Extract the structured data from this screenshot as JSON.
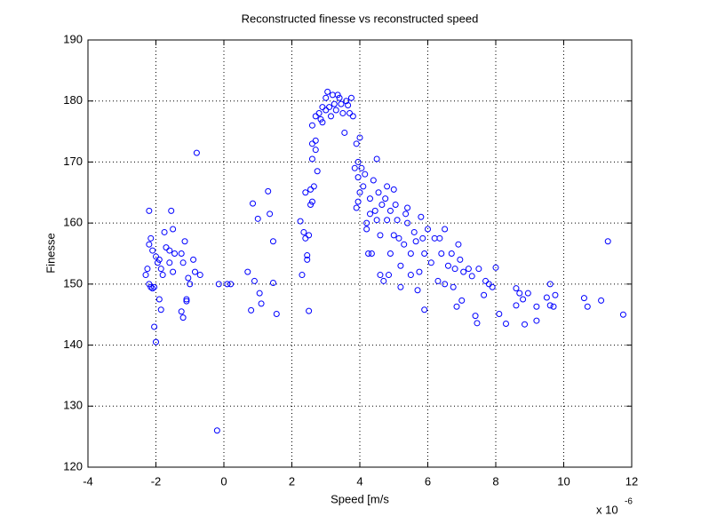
{
  "chart_data": {
    "type": "scatter",
    "title": "Reconstructed finesse vs reconstructed speed",
    "xlabel": "Speed [m/s",
    "ylabel": "Finesse",
    "x_multiplier_text": "x 10",
    "x_multiplier_exponent": "-6",
    "color": "#0000ff",
    "grid": true,
    "xlim": [
      -4,
      12
    ],
    "xticks": [
      -4,
      -2,
      0,
      2,
      4,
      6,
      8,
      10,
      12
    ],
    "ylim": [
      120,
      190
    ],
    "yticks": [
      120,
      130,
      140,
      150,
      160,
      170,
      180,
      190
    ],
    "x": [
      -2.2,
      -2.15,
      -2.2,
      -2.1,
      -2.25,
      -2.3,
      -2.2,
      -2.15,
      -2.1,
      -2.05,
      -2.0,
      -1.95,
      -1.9,
      -1.85,
      -2.05,
      -2.0,
      -1.9,
      -1.85,
      -1.8,
      -1.75,
      -1.7,
      -1.6,
      -1.55,
      -1.5,
      -1.5,
      -1.6,
      -1.45,
      -1.25,
      -1.2,
      -1.25,
      -1.2,
      -1.15,
      -1.1,
      -1.1,
      -1.05,
      -1.0,
      -0.9,
      -0.85,
      -0.7,
      -0.8,
      -0.2,
      -0.15,
      0.1,
      0.2,
      0.7,
      0.8,
      0.85,
      0.9,
      1.0,
      1.05,
      1.1,
      1.3,
      1.35,
      1.45,
      1.45,
      1.55,
      2.25,
      2.3,
      2.35,
      2.4,
      2.4,
      2.45,
      2.45,
      2.5,
      2.5,
      2.55,
      2.55,
      2.6,
      2.6,
      2.65,
      2.6,
      2.7,
      2.7,
      2.75,
      2.6,
      2.7,
      2.8,
      2.85,
      2.9,
      2.9,
      3.0,
      3.0,
      3.05,
      3.1,
      3.15,
      3.2,
      3.25,
      3.3,
      3.35,
      3.4,
      3.45,
      3.5,
      3.55,
      3.6,
      3.65,
      3.7,
      3.75,
      3.8,
      3.85,
      3.9,
      3.95,
      4.0,
      3.95,
      4.0,
      3.95,
      3.9,
      4.05,
      4.1,
      4.15,
      4.2,
      4.25,
      4.2,
      4.3,
      4.3,
      4.35,
      4.4,
      4.45,
      4.5,
      4.55,
      4.5,
      4.6,
      4.6,
      4.65,
      4.7,
      4.75,
      4.8,
      4.8,
      4.85,
      4.9,
      4.9,
      5.0,
      5.0,
      5.05,
      5.1,
      5.15,
      5.2,
      5.2,
      5.3,
      5.35,
      5.4,
      5.4,
      5.5,
      5.5,
      5.6,
      5.65,
      5.7,
      5.75,
      5.8,
      5.85,
      5.9,
      5.9,
      6.0,
      6.1,
      6.2,
      6.3,
      6.35,
      6.4,
      6.5,
      6.5,
      6.6,
      6.7,
      6.75,
      6.8,
      6.85,
      6.9,
      6.95,
      7.0,
      7.05,
      7.2,
      7.3,
      7.4,
      7.45,
      7.5,
      7.65,
      7.7,
      7.8,
      7.9,
      8.0,
      8.1,
      8.3,
      8.6,
      8.6,
      8.7,
      8.8,
      8.85,
      8.95,
      9.2,
      9.2,
      9.5,
      9.6,
      9.6,
      9.7,
      9.75,
      10.6,
      10.7,
      11.1,
      11.3,
      11.75
    ],
    "values": [
      162,
      157.5,
      156.5,
      155.5,
      152.5,
      151.5,
      150,
      149.5,
      149.3,
      149.5,
      154.5,
      153.5,
      154,
      152.5,
      143,
      140.5,
      147.5,
      145.8,
      151.5,
      158.5,
      156,
      155.5,
      162,
      159,
      152,
      153.5,
      155,
      155,
      153.5,
      145.5,
      144.5,
      157,
      147.5,
      147.2,
      151,
      150,
      154,
      152,
      151.5,
      171.5,
      126,
      150,
      150,
      150,
      152,
      145.7,
      163.2,
      150.5,
      160.7,
      148.5,
      146.8,
      165.2,
      161.5,
      157,
      150.2,
      145.1,
      160.3,
      151.5,
      158.5,
      157.5,
      165,
      154.7,
      154,
      145.6,
      158,
      165.5,
      163,
      163.5,
      173,
      166,
      170.5,
      172,
      173.5,
      168.5,
      176,
      177.5,
      178,
      177,
      179,
      176.5,
      180.5,
      178.5,
      181.5,
      179,
      177.5,
      181,
      179.5,
      178.5,
      181,
      180.5,
      179.5,
      178,
      174.8,
      180,
      179.3,
      178,
      180.5,
      177.5,
      169,
      173,
      170,
      174,
      167.5,
      165,
      163.5,
      162.5,
      169,
      166,
      168,
      160,
      155,
      159,
      164,
      161.5,
      155,
      167,
      162,
      170.5,
      165,
      160.5,
      151.5,
      158,
      163,
      150.5,
      164,
      166,
      160.5,
      151.5,
      155,
      162,
      165.5,
      158,
      163,
      160.5,
      157.5,
      153,
      149.5,
      156.5,
      161.5,
      162.5,
      160,
      155,
      151.5,
      158.5,
      157,
      149,
      152,
      161,
      157.5,
      145.8,
      155,
      159,
      153.5,
      157.5,
      150.5,
      157.5,
      155,
      150,
      159,
      153,
      155,
      149.5,
      152.5,
      146.3,
      156.5,
      154,
      147.3,
      152,
      152.5,
      151.3,
      144.8,
      143.6,
      152.5,
      148.2,
      150.5,
      150,
      149.5,
      152.7,
      145.1,
      143.5,
      146.5,
      149.3,
      148.5,
      147.5,
      143.4,
      148.5,
      144,
      146.3,
      147.8,
      150,
      146.5,
      146.3,
      148.2,
      147.7,
      146.3,
      147.3,
      157,
      145
    ]
  }
}
